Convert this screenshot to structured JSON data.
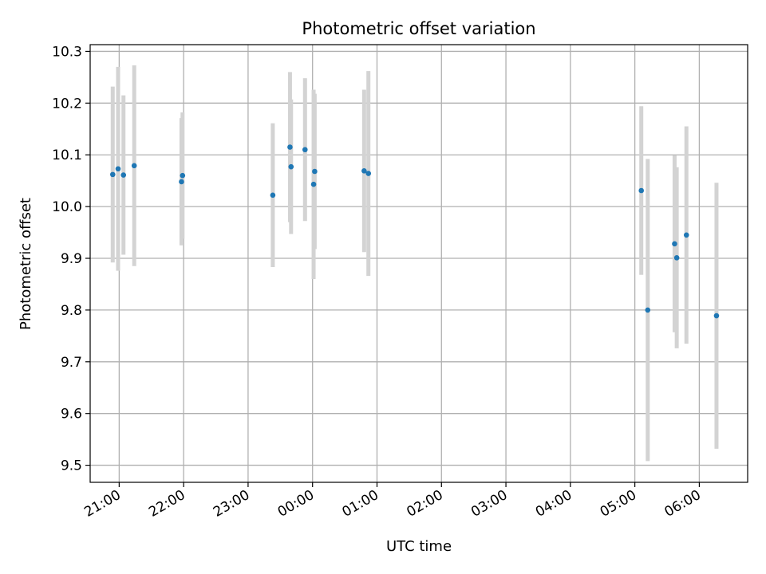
{
  "chart_data": {
    "type": "scatter",
    "title": "Photometric offset variation",
    "xlabel": "UTC time",
    "ylabel": "Photometric offset",
    "xlim": [
      "20:33",
      "06:45"
    ],
    "ylim": [
      9.467,
      10.313
    ],
    "xticks": [
      "21:00",
      "22:00",
      "23:00",
      "00:00",
      "01:00",
      "02:00",
      "03:00",
      "04:00",
      "05:00",
      "06:00"
    ],
    "yticks": [
      9.5,
      9.6,
      9.7,
      9.8,
      9.9,
      10.0,
      10.1,
      10.2,
      10.3
    ],
    "grid": true,
    "error_bar_color": "#d3d3d3",
    "marker_color": "#1f77b4",
    "series": [
      {
        "points": [
          {
            "x": "20:54",
            "y": 10.062,
            "err": 0.17
          },
          {
            "x": "20:59",
            "y": 10.073,
            "err": 0.197
          },
          {
            "x": "21:04",
            "y": 10.061,
            "err": 0.154
          },
          {
            "x": "21:14",
            "y": 10.079,
            "err": 0.194
          },
          {
            "x": "21:58",
            "y": 10.048,
            "err": 0.123
          },
          {
            "x": "21:59",
            "y": 10.06,
            "err": 0.122
          },
          {
            "x": "23:23",
            "y": 10.022,
            "err": 0.139
          },
          {
            "x": "23:39",
            "y": 10.115,
            "err": 0.145
          },
          {
            "x": "23:40",
            "y": 10.077,
            "err": 0.13
          },
          {
            "x": "23:53",
            "y": 10.11,
            "err": 0.138
          },
          {
            "x": "00:01",
            "y": 10.043,
            "err": 0.183
          },
          {
            "x": "00:02",
            "y": 10.068,
            "err": 0.15
          },
          {
            "x": "00:48",
            "y": 10.069,
            "err": 0.157
          },
          {
            "x": "00:52",
            "y": 10.064,
            "err": 0.198
          },
          {
            "x": "05:06",
            "y": 10.031,
            "err": 0.163
          },
          {
            "x": "05:12",
            "y": 9.8,
            "err": 0.292
          },
          {
            "x": "05:37",
            "y": 9.928,
            "err": 0.171
          },
          {
            "x": "05:39",
            "y": 9.901,
            "err": 0.175
          },
          {
            "x": "05:48",
            "y": 9.945,
            "err": 0.21
          },
          {
            "x": "06:16",
            "y": 9.789,
            "err": 0.257
          }
        ]
      }
    ]
  }
}
